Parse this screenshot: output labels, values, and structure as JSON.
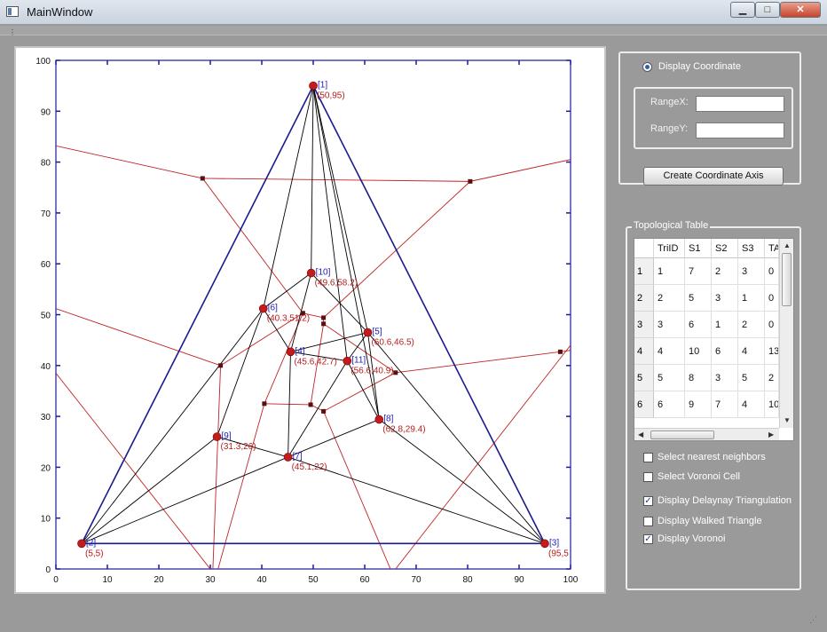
{
  "window": {
    "title": "MainWindow"
  },
  "controls": {
    "display_coordinate": "Display Coordinate",
    "range_x_label": "RangeX:",
    "range_y_label": "RangeY:",
    "range_x_value": "",
    "range_y_value": "",
    "create_axis_button": "Create Coordinate Axis"
  },
  "topology": {
    "group_title": "Topological Table",
    "columns": [
      "TriID",
      "S1",
      "S2",
      "S3",
      "TA"
    ],
    "rows": [
      {
        "header": "1",
        "cells": [
          "1",
          "7",
          "2",
          "3",
          "0"
        ]
      },
      {
        "header": "2",
        "cells": [
          "2",
          "5",
          "3",
          "1",
          "0"
        ]
      },
      {
        "header": "3",
        "cells": [
          "3",
          "6",
          "1",
          "2",
          "0"
        ]
      },
      {
        "header": "4",
        "cells": [
          "4",
          "10",
          "6",
          "4",
          "13"
        ]
      },
      {
        "header": "5",
        "cells": [
          "5",
          "8",
          "3",
          "5",
          "2"
        ]
      },
      {
        "header": "6",
        "cells": [
          "6",
          "9",
          "7",
          "4",
          "10"
        ]
      }
    ]
  },
  "options": [
    {
      "label": "Select  nearest neighbors",
      "checked": false
    },
    {
      "label": "Select Voronoi Cell",
      "checked": false
    },
    {
      "label": "Display Delaynay Triangulation",
      "checked": true
    },
    {
      "label": "Display Walked Triangle",
      "checked": false
    },
    {
      "label": "Display Voronoi",
      "checked": true
    }
  ],
  "chart_data": {
    "type": "scatter",
    "xlim": [
      0,
      100
    ],
    "ylim": [
      0,
      100
    ],
    "x_ticks": [
      "0",
      "10",
      "20",
      "30",
      "40",
      "50",
      "60",
      "70",
      "80",
      "90",
      "100"
    ],
    "y_ticks": [
      "0",
      "10",
      "20",
      "30",
      "40",
      "50",
      "60",
      "70",
      "80",
      "90",
      "100"
    ],
    "points": [
      {
        "id": "[1]",
        "x": 50,
        "y": 95,
        "label": "(50,95)"
      },
      {
        "id": "[2]",
        "x": 5,
        "y": 5,
        "label": "(5,5)"
      },
      {
        "id": "[3]",
        "x": 95,
        "y": 5,
        "label": "(95,5"
      },
      {
        "id": "[4]",
        "x": 45.6,
        "y": 42.7,
        "label": "(45.6,42.7)"
      },
      {
        "id": "[5]",
        "x": 60.6,
        "y": 46.5,
        "label": "(60.6,46.5)"
      },
      {
        "id": "[6]",
        "x": 40.3,
        "y": 51.2,
        "label": "(40.3,51.2)"
      },
      {
        "id": "[7]",
        "x": 45.1,
        "y": 22,
        "label": "(45.1,22)"
      },
      {
        "id": "[8]",
        "x": 62.8,
        "y": 29.4,
        "label": "(62.8,29.4)"
      },
      {
        "id": "[9]",
        "x": 31.3,
        "y": 26,
        "label": "(31.3,26)"
      },
      {
        "id": "[10]",
        "x": 49.6,
        "y": 58.2,
        "label": "(49.6,58.2)"
      },
      {
        "id": "[11]",
        "x": 56.6,
        "y": 40.9,
        "label": "(56.6,40.9)"
      }
    ],
    "delaunay_edges": [
      [
        1,
        2
      ],
      [
        1,
        3
      ],
      [
        2,
        3
      ],
      [
        1,
        6
      ],
      [
        1,
        10
      ],
      [
        1,
        5
      ],
      [
        1,
        11
      ],
      [
        1,
        8
      ],
      [
        2,
        9
      ],
      [
        2,
        7
      ],
      [
        2,
        6
      ],
      [
        3,
        8
      ],
      [
        3,
        7
      ],
      [
        3,
        5
      ],
      [
        6,
        10
      ],
      [
        6,
        4
      ],
      [
        6,
        9
      ],
      [
        10,
        4
      ],
      [
        10,
        5
      ],
      [
        4,
        5
      ],
      [
        4,
        11
      ],
      [
        4,
        7
      ],
      [
        9,
        7
      ],
      [
        5,
        11
      ],
      [
        5,
        8
      ],
      [
        11,
        8
      ],
      [
        11,
        7
      ],
      [
        7,
        8
      ]
    ],
    "voronoi_vertices": [
      [
        28.5,
        76.8
      ],
      [
        80.5,
        76.2
      ],
      [
        48,
        50.3
      ],
      [
        52,
        49.4
      ],
      [
        52,
        48.2
      ],
      [
        32,
        40
      ],
      [
        66,
        38.6
      ],
      [
        40.5,
        32.5
      ],
      [
        49.5,
        32.3
      ],
      [
        52,
        31
      ],
      [
        98,
        42.7
      ]
    ],
    "voronoi_edges": [
      {
        "from": [
          0,
          83.2
        ],
        "to": 0
      },
      {
        "from": 0,
        "to": 1
      },
      {
        "from": 1,
        "to": [
          100,
          80.5
        ]
      },
      {
        "from": 0,
        "to": 2
      },
      {
        "from": 1,
        "to": 3
      },
      {
        "from": 2,
        "to": 3
      },
      {
        "from": 2,
        "to": 5
      },
      {
        "from": 3,
        "to": 4
      },
      {
        "from": 4,
        "to": 6
      },
      {
        "from": [
          0,
          51.2
        ],
        "to": 5
      },
      {
        "from": 5,
        "to": [
          30.5,
          0
        ]
      },
      {
        "from": 2,
        "to": 7
      },
      {
        "from": 7,
        "to": 8
      },
      {
        "from": 8,
        "to": 4
      },
      {
        "from": 8,
        "to": 9
      },
      {
        "from": 7,
        "to": [
          31.5,
          0
        ]
      },
      {
        "from": 9,
        "to": [
          65,
          0
        ]
      },
      {
        "from": 6,
        "to": 10
      },
      {
        "from": 10,
        "to": [
          100,
          43
        ]
      },
      {
        "from": [
          0,
          38.5
        ],
        "to": [
          30,
          0
        ]
      },
      {
        "from": [
          66,
          0
        ],
        "to": [
          100,
          44
        ]
      },
      {
        "from": 6,
        "to": 9
      }
    ]
  }
}
